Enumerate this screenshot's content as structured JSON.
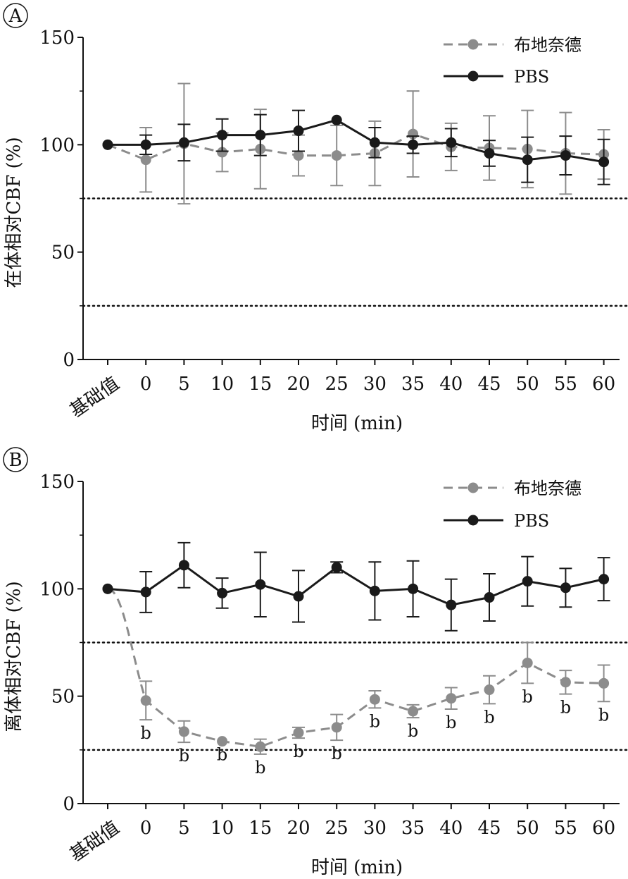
{
  "chart_data": [
    {
      "type": "line",
      "panel_label": "A",
      "xlabel": "时间 (min)",
      "ylabel": "在体相对CBF (%)",
      "categories": [
        "基础值",
        "0",
        "5",
        "10",
        "15",
        "20",
        "25",
        "30",
        "35",
        "40",
        "45",
        "50",
        "55",
        "60"
      ],
      "ylim": [
        0,
        150
      ],
      "yticks": [
        0,
        50,
        100,
        150
      ],
      "reference_lines": [
        75,
        25
      ],
      "legend_position": "top-right",
      "series": [
        {
          "name": "布地奈德",
          "color": "#8c8c8c",
          "style": "dashed",
          "values": [
            100,
            93,
            100.5,
            96.5,
            98,
            95,
            95,
            96,
            105,
            99,
            98.5,
            98,
            96,
            95.5
          ],
          "errors": [
            0,
            15,
            28,
            9,
            18.5,
            9.5,
            14,
            15,
            20,
            11,
            15,
            18,
            19,
            11.5
          ],
          "labels": []
        },
        {
          "name": "PBS",
          "color": "#1a1a1a",
          "style": "solid",
          "values": [
            100,
            100,
            101,
            104.5,
            104.5,
            106.5,
            111.5,
            101,
            100,
            101,
            96,
            93,
            95,
            92
          ],
          "errors": [
            0,
            4.5,
            8.5,
            7.5,
            9.5,
            9.5,
            0,
            7,
            4,
            6.5,
            6,
            10.5,
            9,
            10.5
          ],
          "labels": []
        }
      ]
    },
    {
      "type": "line",
      "panel_label": "B",
      "xlabel": "时间 (min)",
      "ylabel": "离体相对CBF (%)",
      "categories": [
        "基础值",
        "0",
        "5",
        "10",
        "15",
        "20",
        "25",
        "30",
        "35",
        "40",
        "45",
        "50",
        "55",
        "60"
      ],
      "ylim": [
        0,
        150
      ],
      "yticks": [
        0,
        50,
        100,
        150
      ],
      "reference_lines": [
        75,
        25
      ],
      "legend_position": "top-right",
      "series": [
        {
          "name": "布地奈德",
          "color": "#8c8c8c",
          "style": "dashed",
          "values": [
            100,
            48,
            33.5,
            29,
            26.5,
            33,
            35.5,
            48.5,
            43,
            49,
            53,
            65.5,
            56.5,
            56
          ],
          "errors": [
            0,
            9,
            5,
            0,
            3.5,
            2.5,
            6,
            4,
            3,
            5,
            6.5,
            9.5,
            5.5,
            8.5
          ],
          "labels": [
            "",
            "b",
            "b",
            "b",
            "b",
            "b",
            "b",
            "b",
            "b",
            "b",
            "b",
            "b",
            "b",
            "b"
          ]
        },
        {
          "name": "PBS",
          "color": "#1a1a1a",
          "style": "solid",
          "values": [
            100,
            98.5,
            111,
            98,
            102,
            96.5,
            110,
            99,
            100,
            92.5,
            96,
            103.5,
            100.5,
            104.5
          ],
          "errors": [
            0,
            9.5,
            10.5,
            7,
            15,
            12,
            2.5,
            13.5,
            13,
            12,
            11,
            11.5,
            9,
            10
          ],
          "labels": []
        }
      ]
    }
  ]
}
